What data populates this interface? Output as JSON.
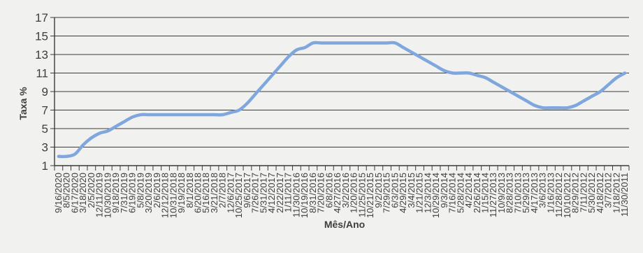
{
  "chart_data": {
    "type": "line",
    "title": "",
    "ylabel": "Taxa %",
    "xlabel": "Mês/Ano",
    "ylim": [
      1,
      17
    ],
    "yticks": [
      1,
      3,
      5,
      7,
      9,
      11,
      13,
      15,
      17
    ],
    "grid": true,
    "legend": "none",
    "line_color": "#7fa6dd",
    "x": [
      "9/16/2020",
      "8/5/2020",
      "6/17/2020",
      "3/18/2020",
      "2/5/2020",
      "12/11/2019",
      "10/30/2019",
      "9/18/2019",
      "7/31/2019",
      "6/19/2019",
      "5/8/2019",
      "3/20/2019",
      "2/6/2019",
      "12/12/2018",
      "10/31/2018",
      "9/19/2018",
      "8/1/2018",
      "6/20/2018",
      "5/16/2018",
      "3/21/2018",
      "2/7/2018",
      "12/6/2017",
      "10/25/2017",
      "9/6/2017",
      "7/26/2017",
      "5/31/2017",
      "4/12/2017",
      "2/22/2017",
      "1/11/2017",
      "11/30/2016",
      "10/19/2016",
      "8/31/2016",
      "7/20/2016",
      "6/8/2016",
      "4/27/2016",
      "3/2/2016",
      "1/20/2016",
      "11/25/2015",
      "10/21/2015",
      "9/2/2015",
      "7/29/2015",
      "6/3/2015",
      "4/29/2015",
      "3/4/2015",
      "1/21/2015",
      "12/3/2014",
      "10/29/2014",
      "9/3/2014",
      "7/16/2014",
      "5/28/2014",
      "4/2/2014",
      "2/26/2014",
      "1/15/2014",
      "11/27/2013",
      "10/9/2013",
      "8/28/2013",
      "7/10/2013",
      "5/29/2013",
      "4/17/2013",
      "3/6/2013",
      "1/16/2013",
      "11/28/2012",
      "10/10/2012",
      "8/29/2012",
      "7/11/2012",
      "5/30/2012",
      "4/18/2012",
      "3/7/2012",
      "1/18/2012",
      "11/30/2011"
    ],
    "values": [
      2,
      2,
      2.25,
      3.25,
      4,
      4.5,
      4.75,
      5.25,
      5.75,
      6.25,
      6.5,
      6.5,
      6.5,
      6.5,
      6.5,
      6.5,
      6.5,
      6.5,
      6.5,
      6.5,
      6.5,
      6.75,
      7,
      7.75,
      8.75,
      9.75,
      10.75,
      11.75,
      12.75,
      13.5,
      13.75,
      14.25,
      14.25,
      14.25,
      14.25,
      14.25,
      14.25,
      14.25,
      14.25,
      14.25,
      14.25,
      14.25,
      13.75,
      13.25,
      12.75,
      12.25,
      11.75,
      11.25,
      11,
      11,
      11,
      10.75,
      10.5,
      10,
      9.5,
      9,
      8.5,
      8,
      7.5,
      7.25,
      7.25,
      7.25,
      7.25,
      7.5,
      8,
      8.5,
      9,
      9.75,
      10.5,
      11
    ]
  }
}
